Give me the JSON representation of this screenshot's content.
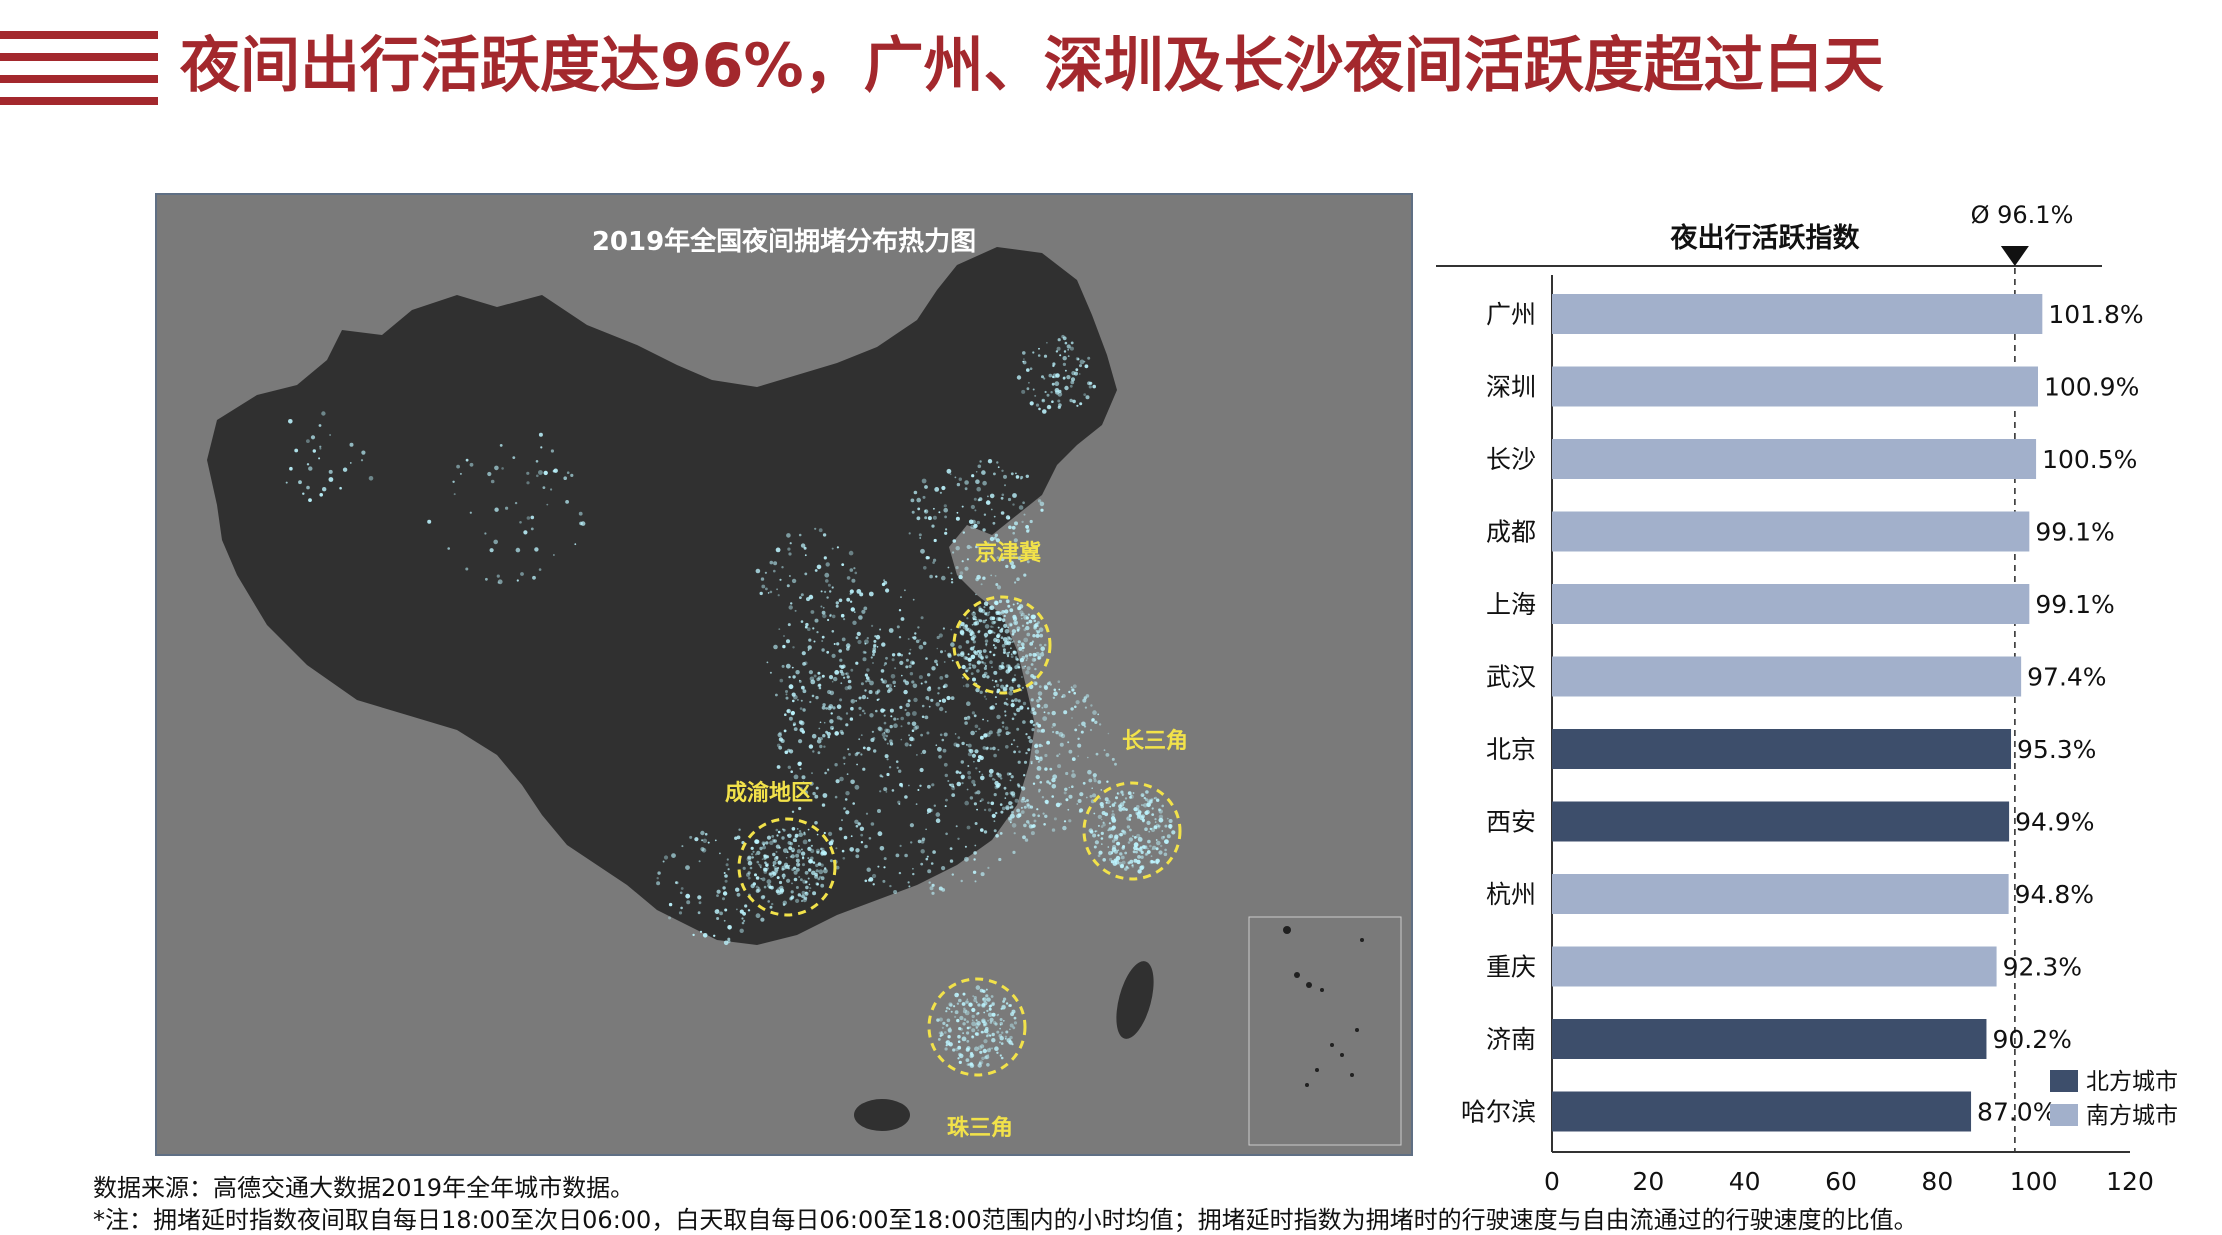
{
  "title": "夜间出行活跃度达96%，广州、深圳及长沙夜间活跃度超过白天",
  "map": {
    "title": "2019年全国夜间拥堵分布热力图",
    "regions": {
      "jingjinji": "京津冀",
      "changsanjiao": "长三角",
      "chengyu": "成渝地区",
      "zhusanjiao": "珠三角"
    }
  },
  "chart_data": {
    "type": "bar",
    "orientation": "horizontal",
    "title": "夜出行活跃指数",
    "categories": [
      "广州",
      "深圳",
      "长沙",
      "成都",
      "上海",
      "武汉",
      "北京",
      "西安",
      "杭州",
      "重庆",
      "济南",
      "哈尔滨"
    ],
    "values": [
      101.8,
      100.9,
      100.5,
      99.1,
      99.1,
      97.4,
      95.3,
      94.9,
      94.8,
      92.3,
      90.2,
      87.0
    ],
    "value_labels": [
      "101.8%",
      "100.9%",
      "100.5%",
      "99.1%",
      "99.1%",
      "97.4%",
      "95.3%",
      "94.9%",
      "94.8%",
      "92.3%",
      "90.2%",
      "87.0%"
    ],
    "groups": [
      "南方城市",
      "南方城市",
      "南方城市",
      "南方城市",
      "南方城市",
      "南方城市",
      "北方城市",
      "北方城市",
      "南方城市",
      "南方城市",
      "北方城市",
      "北方城市"
    ],
    "legend": [
      {
        "name": "北方城市",
        "color": "#3d4e6b"
      },
      {
        "name": "南方城市",
        "color": "#a2b0cb"
      }
    ],
    "xlim": [
      0,
      120
    ],
    "xticks": [
      0,
      20,
      40,
      60,
      80,
      100,
      120
    ],
    "average": {
      "value": 96.1,
      "label": "Ø 96.1%"
    },
    "legend_position": "bottom-right"
  },
  "footer": {
    "source": "数据来源：高德交通大数据2019年全年城市数据。",
    "note": "*注：拥堵延时指数夜间取自每日18:00至次日06:00，白天取自每日06:00至18:00范围内的小时均值；拥堵延时指数为拥堵时的行驶速度与自由流通过的行驶速度的比值。"
  },
  "colors": {
    "accent": "#a3282d",
    "north": "#3d4e6b",
    "south": "#a2b0cb",
    "map_bg": "#7a7a7a",
    "land": "#303030",
    "highlight": "#f2e24a"
  }
}
